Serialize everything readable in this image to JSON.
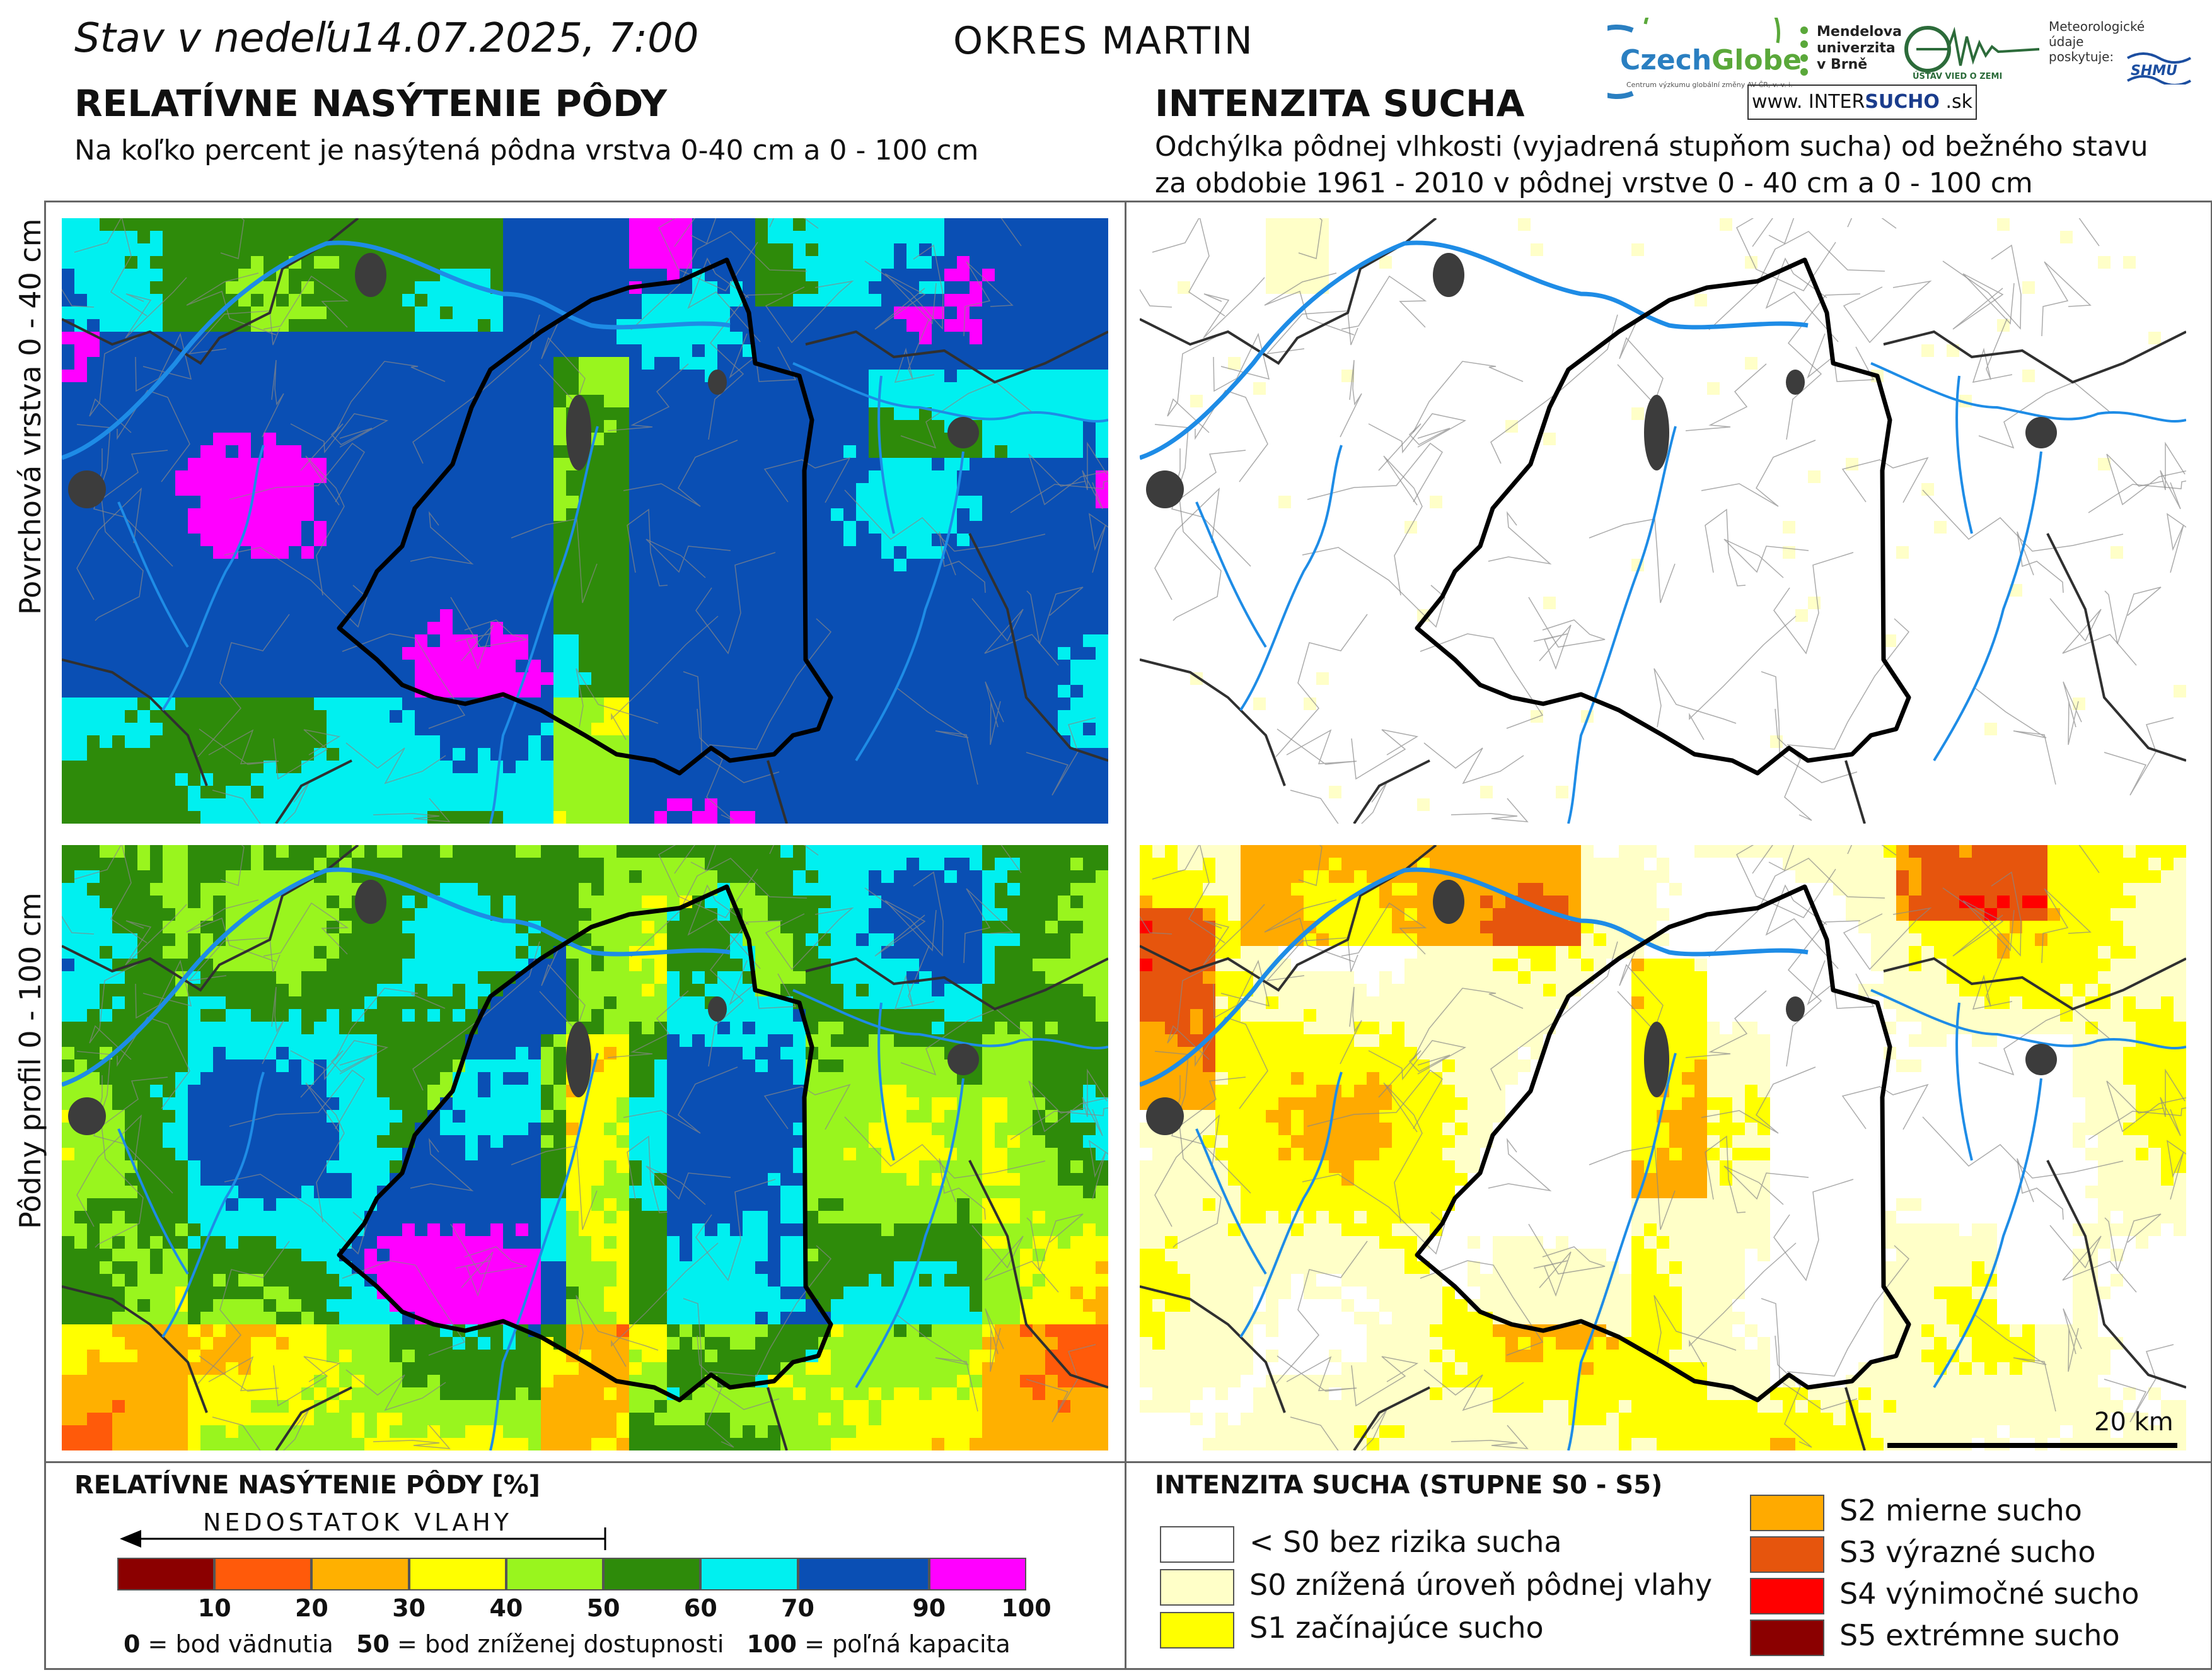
{
  "header": {
    "date_prefix": "Stav v nedeľu",
    "date": "14.07.2025, 7:00",
    "district": "OKRES  MARTIN",
    "left_title": "RELATÍVNE NASÝTENIE PÔDY",
    "left_subtitle": "Na koľko percent je nasýtená pôdna vrstva 0-40 cm a 0 - 100 cm",
    "right_title": "INTENZITA SUCHA",
    "right_subtitle_1": "Odchýlka pôdnej vlhkosti (vyjadrená stupňom sucha) od bežného stavu",
    "right_subtitle_2": "za obdobie 1961 - 2010 v pôdnej vrstve 0 - 40 cm a 0 - 100 cm"
  },
  "logos": {
    "czechglobe_a": "Czech",
    "czechglobe_b": "Globe",
    "czechglobe_sub": "Centrum výzkumu globální změny AV ČR, v. v. i.",
    "mendelu_1": "Mendelova",
    "mendelu_2": "univerzita",
    "mendelu_3": "v Brně",
    "uvz": "ÚSTAV VIED O ZEMI",
    "met_1": "Meteorologické",
    "met_2": "údaje",
    "met_3": "poskytuje:",
    "shmu": "SHMU",
    "intersucho_a": "www.  INTER",
    "intersucho_b": "SUCHO",
    "intersucho_c": " .sk"
  },
  "rows": {
    "top": "Povrchová vrstva 0 - 40 cm",
    "bottom": "Pôdny profil 0 - 100 cm"
  },
  "scale_bar": "20 km",
  "saturation_legend": {
    "title": "RELATÍVNE NASÝTENIE PÔDY [%]",
    "arrow_label": "NEDOSTATOK VLAHY",
    "classes": [
      {
        "from": 0,
        "to": 10,
        "color": "#8b0000"
      },
      {
        "from": 10,
        "to": 20,
        "color": "#ff5a0a"
      },
      {
        "from": 20,
        "to": 30,
        "color": "#ffb000"
      },
      {
        "from": 30,
        "to": 40,
        "color": "#ffff00"
      },
      {
        "from": 40,
        "to": 50,
        "color": "#99f51e"
      },
      {
        "from": 50,
        "to": 60,
        "color": "#2e8b0a"
      },
      {
        "from": 60,
        "to": 70,
        "color": "#00f0f0"
      },
      {
        "from": 70,
        "to": 90,
        "color": "#0a4fb4"
      },
      {
        "from": 90,
        "to": 100,
        "color": "#ff00ff"
      }
    ],
    "ticks": [
      "10",
      "20",
      "30",
      "40",
      "50",
      "60",
      "70",
      "90",
      "100"
    ],
    "note_0_value": "0",
    "note_0_text": " = bod vädnutia",
    "note_50_value": "50",
    "note_50_text": " = bod zníženej dostupnosti",
    "note_100_value": "100",
    "note_100_text": " = poľná kapacita"
  },
  "drought_legend": {
    "title": "INTENZITA SUCHA (STUPNE S0 - S5)",
    "items": [
      {
        "label": "< S0 bez rizika sucha",
        "color": "#ffffff"
      },
      {
        "label": "S0 znížená úroveň pôdnej vlahy",
        "color": "#ffffc8"
      },
      {
        "label": "S1 začínajúce sucho",
        "color": "#ffff00"
      },
      {
        "label": "S2 mierne sucho",
        "color": "#ffaa00"
      },
      {
        "label": "S3 výrazné sucho",
        "color": "#e6550d"
      },
      {
        "label": "S4 výnimočné sucho",
        "color": "#ff0000"
      },
      {
        "label": "S5 extrémne sucho",
        "color": "#8b0000"
      }
    ]
  },
  "colors": {
    "district_border": "#000000",
    "rivers": "#1e8ce6",
    "towns": "#3c3c3c",
    "municipal_borders": "#888888",
    "region_borders": "#303030"
  }
}
